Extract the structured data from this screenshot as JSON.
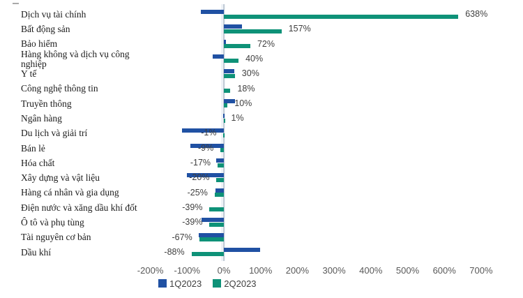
{
  "chart_data": {
    "type": "bar",
    "orientation": "horizontal",
    "title": "",
    "xlabel": "",
    "ylabel": "",
    "categories": [
      "Dịch vụ tài chính",
      "Bất động sản",
      "Bảo hiểm",
      "Hàng không và dịch vụ công nghiệp",
      "Y tế",
      "Công nghệ thông tin",
      "Truyền thông",
      "Ngân hàng",
      "Du lịch và giải trí",
      "Bán lẻ",
      "Hóa chất",
      "Xây dựng và vật liệu",
      "Hàng cá nhân và gia dụng",
      "Điện nước và xăng dầu khí đốt",
      "Ô tô và phụ tùng",
      "Tài nguyên cơ bản",
      "Dầu khí"
    ],
    "series": [
      {
        "name": "1Q2023",
        "color": "#2051A3",
        "values": [
          -62,
          50,
          5,
          -30,
          29,
          0,
          30,
          -1,
          -113,
          -92,
          -21,
          -100,
          -22,
          0,
          -60,
          -69,
          98
        ],
        "values_note": "estimated from bar lengths; this series has no data labels in the chart"
      },
      {
        "name": "2Q2023",
        "color": "#0E9278",
        "values": [
          638,
          157,
          72,
          40,
          30,
          18,
          10,
          1,
          -1,
          -9,
          -17,
          -20,
          -25,
          -39,
          -39,
          -67,
          -88
        ],
        "labels": [
          "638%",
          "157%",
          "72%",
          "40%",
          "30%",
          "18%",
          "10%",
          "1%",
          "-1%",
          "-9%",
          "-17%",
          "-20%",
          "-25%",
          "-39%",
          "-39%",
          "-67%",
          "-88%"
        ]
      }
    ],
    "x_axis": {
      "tick_labels": [
        "-200%",
        "-100%",
        "0%",
        "100%",
        "200%",
        "300%",
        "400%",
        "500%",
        "600%",
        "700%"
      ],
      "tick_values": [
        -200,
        -100,
        0,
        100,
        200,
        300,
        400,
        500,
        600,
        700
      ],
      "range": [
        -200,
        700
      ],
      "grid": false
    },
    "legend": {
      "position": "bottom",
      "entries": [
        "1Q2023",
        "2Q2023"
      ]
    }
  },
  "colors": {
    "series_1q2023": "#2051A3",
    "series_2q2023": "#0E9278",
    "axis_text": "#595959",
    "data_label_text": "#3F3F3F",
    "category_text": "#1B1B1B",
    "axis_line": "#C3CCD6",
    "background": "#FFFFFF"
  }
}
